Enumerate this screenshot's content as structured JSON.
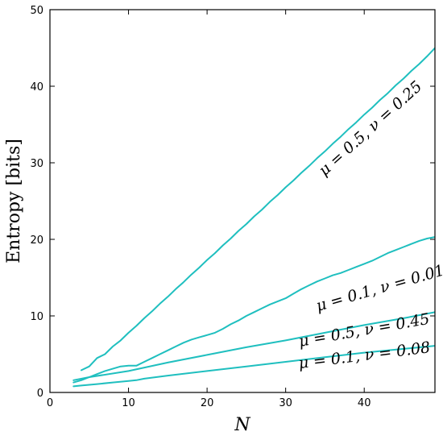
{
  "chart_data": {
    "type": "line",
    "title": "",
    "xlabel": "N",
    "ylabel": "Entropy [bits]",
    "xlim": [
      0,
      49
    ],
    "ylim": [
      0,
      50
    ],
    "xticks": [
      0,
      10,
      20,
      30,
      40
    ],
    "yticks": [
      0,
      10,
      20,
      30,
      40,
      50
    ],
    "grid": false,
    "line_color": "#1fbfbf",
    "series": [
      {
        "name": "μ = 0.5, ν = 0.25",
        "x": [
          4,
          5,
          6,
          7,
          8,
          9,
          10,
          11,
          12,
          13,
          14,
          15,
          16,
          17,
          18,
          19,
          20,
          21,
          22,
          23,
          24,
          25,
          26,
          27,
          28,
          29,
          30,
          31,
          32,
          33,
          34,
          35,
          36,
          37,
          38,
          39,
          40,
          41,
          42,
          43,
          44,
          45,
          46,
          47,
          48,
          49
        ],
        "y": [
          2.9,
          3.4,
          4.5,
          5.0,
          6.0,
          6.8,
          7.8,
          8.7,
          9.7,
          10.6,
          11.6,
          12.5,
          13.5,
          14.4,
          15.4,
          16.3,
          17.3,
          18.2,
          19.2,
          20.1,
          21.1,
          22.0,
          23.0,
          23.9,
          24.9,
          25.8,
          26.8,
          27.7,
          28.7,
          29.6,
          30.6,
          31.5,
          32.5,
          33.4,
          34.4,
          35.3,
          36.3,
          37.2,
          38.2,
          39.1,
          40.1,
          41.0,
          42.0,
          42.9,
          43.9,
          45.0
        ]
      },
      {
        "name": "μ = 0.1, ν = 0.01",
        "x": [
          3,
          4,
          5,
          6,
          7,
          8,
          9,
          10,
          11,
          12,
          13,
          14,
          15,
          16,
          17,
          18,
          19,
          20,
          21,
          22,
          23,
          24,
          25,
          26,
          27,
          28,
          29,
          30,
          31,
          32,
          33,
          34,
          35,
          36,
          37,
          38,
          39,
          40,
          41,
          42,
          43,
          44,
          45,
          46,
          47,
          48,
          49
        ],
        "y": [
          1.3,
          1.6,
          2.0,
          2.4,
          2.8,
          3.1,
          3.4,
          3.5,
          3.5,
          4.0,
          4.5,
          5.0,
          5.5,
          6.0,
          6.5,
          6.9,
          7.2,
          7.5,
          7.8,
          8.3,
          8.9,
          9.4,
          10.0,
          10.5,
          11.0,
          11.5,
          11.9,
          12.3,
          12.9,
          13.5,
          14.0,
          14.5,
          14.9,
          15.3,
          15.6,
          16.0,
          16.4,
          16.8,
          17.2,
          17.7,
          18.2,
          18.6,
          19.0,
          19.4,
          19.8,
          20.1,
          20.3
        ]
      },
      {
        "name": "μ = 0.5, ν = 0.45",
        "x": [
          3,
          5,
          10,
          15,
          20,
          25,
          30,
          35,
          40,
          45,
          49
        ],
        "y": [
          1.6,
          2.0,
          2.8,
          3.9,
          4.9,
          5.9,
          6.8,
          7.8,
          8.8,
          9.7,
          10.5
        ]
      },
      {
        "name": "μ = 0.1, ν = 0.08",
        "x": [
          3,
          4,
          5,
          6,
          8,
          10,
          11,
          12,
          15,
          20,
          25,
          30,
          35,
          40,
          45,
          49
        ],
        "y": [
          0.8,
          0.9,
          1.0,
          1.1,
          1.3,
          1.5,
          1.6,
          1.8,
          2.2,
          2.8,
          3.4,
          4.0,
          4.6,
          5.2,
          5.7,
          6.1
        ]
      }
    ],
    "annotations": [
      {
        "text": "μ = 0.5, ν = 0.25",
        "x": 41.2,
        "y": 34.0,
        "rotation_deg": -42
      },
      {
        "text": "μ = 0.1, ν = 0.01",
        "x": 42.2,
        "y": 13.0,
        "rotation_deg": -16
      },
      {
        "text": "μ = 0.5, ν = 0.45",
        "x": 40.1,
        "y": 7.5,
        "rotation_deg": -10
      },
      {
        "text": "μ = 0.1, ν = 0.08",
        "x": 40.1,
        "y": 4.2,
        "rotation_deg": -7
      }
    ]
  }
}
